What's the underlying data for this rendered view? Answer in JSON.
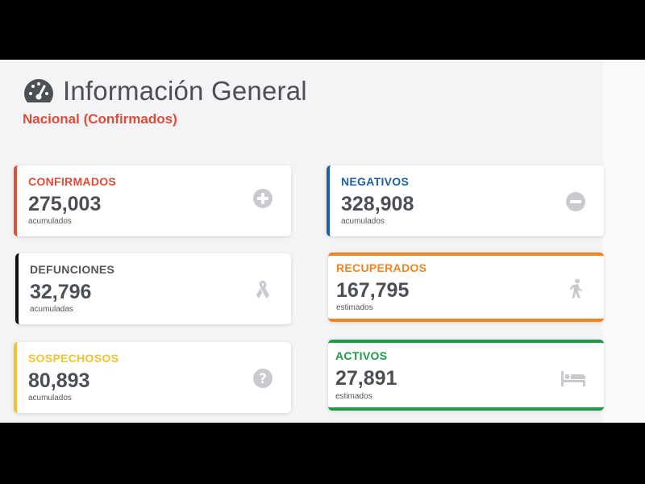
{
  "header": {
    "title": "Información General",
    "subtitle": "Nacional (Confirmados)"
  },
  "cards": [
    {
      "key": "confirmados",
      "label": "CONFIRMADOS",
      "value": "275,003",
      "note": "acumulados",
      "color": "#e04b3a",
      "icon": "plus-circle-icon"
    },
    {
      "key": "negativos",
      "label": "NEGATIVOS",
      "value": "328,908",
      "note": "acumulados",
      "color": "#1f5fa8",
      "icon": "minus-circle-icon"
    },
    {
      "key": "defunciones",
      "label": "DEFUNCIONES",
      "value": "32,796",
      "note": "acumuladas",
      "color": "#111111",
      "label_color": "#555555",
      "icon": "ribbon-icon"
    },
    {
      "key": "recuperados",
      "label": "RECUPERADOS",
      "value": "167,795",
      "note": "estimados",
      "color": "#ee8523",
      "icon": "walking-person-icon"
    },
    {
      "key": "sospechosos",
      "label": "SOSPECHOSOS",
      "value": "80,893",
      "note": "acumulados",
      "color": "#f1c232",
      "icon": "question-circle-icon"
    },
    {
      "key": "activos",
      "label": "ACTIVOS",
      "value": "27,891",
      "note": "estimados",
      "color": "#1e9a49",
      "icon": "bed-icon"
    }
  ]
}
